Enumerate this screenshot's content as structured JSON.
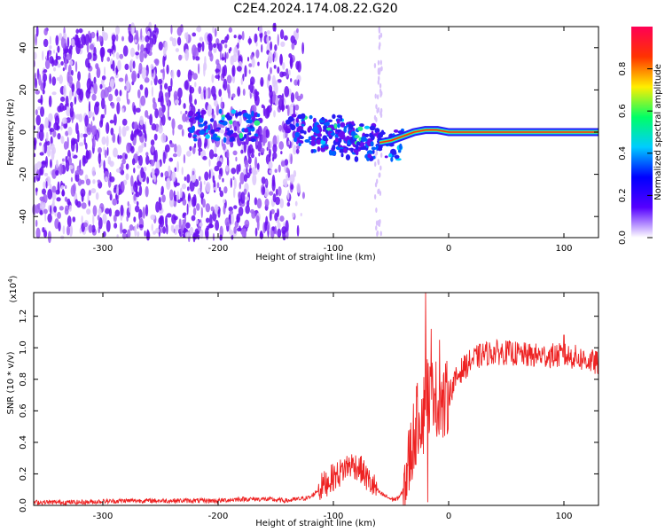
{
  "title": "C2E4.2024.174.08.22.G20",
  "chart_data": [
    {
      "type": "heatmap",
      "xlabel": "Height of straight line (km)",
      "ylabel": "Frequency (Hz)",
      "xlim": [
        -360,
        130
      ],
      "ylim": [
        -50,
        50
      ],
      "x_ticks": [
        -300,
        -200,
        -100,
        0,
        100
      ],
      "y_ticks": [
        -40,
        -20,
        0,
        20,
        40
      ],
      "colorbar": {
        "label": "Normalized spectral amplitude",
        "range": [
          0,
          1
        ],
        "ticks": [
          "0.0",
          "0.2",
          "0.4",
          "0.6",
          "0.8"
        ],
        "colors": [
          "#ffffff",
          "#5500ff",
          "#0000ff",
          "#00ccff",
          "#00ff66",
          "#ffee00",
          "#ff3300",
          "#ff0055"
        ]
      },
      "description_points": {
        "ridge": [
          [
            -60,
            -5
          ],
          [
            -50,
            -4
          ],
          [
            -40,
            -2
          ],
          [
            -30,
            0
          ],
          [
            -20,
            1
          ],
          [
            -10,
            1
          ],
          [
            0,
            0
          ],
          [
            50,
            0
          ],
          [
            130,
            0
          ]
        ],
        "blob_center": [
          [
            -195,
            3
          ],
          [
            -110,
            1
          ],
          [
            -90,
            -3
          ],
          [
            -70,
            -6
          ]
        ]
      }
    },
    {
      "type": "line",
      "xlabel": "Height of straight line (km)",
      "ylabel": "SNR (10 * v/v)",
      "scale_note": "(x10",
      "scale_exp": "4",
      "xlim": [
        -360,
        130
      ],
      "ylim": [
        0,
        1.35
      ],
      "x_ticks": [
        -300,
        -200,
        -100,
        0,
        100
      ],
      "y_ticks": [
        0.0,
        0.2,
        0.4,
        0.6,
        0.8,
        1.0,
        1.2
      ],
      "series": [
        {
          "color": "#ee2222",
          "x": [
            -360,
            -320,
            -280,
            -240,
            -200,
            -180,
            -160,
            -140,
            -120,
            -110,
            -100,
            -95,
            -90,
            -85,
            -80,
            -75,
            -70,
            -65,
            -60,
            -55,
            -50,
            -45,
            -40,
            -35,
            -30,
            -25,
            -22,
            -20,
            -18,
            -15,
            -12,
            -10,
            -8,
            -5,
            0,
            5,
            10,
            20,
            30,
            40,
            50,
            60,
            70,
            80,
            90,
            100,
            110,
            120,
            130
          ],
          "y": [
            0.02,
            0.02,
            0.03,
            0.03,
            0.03,
            0.04,
            0.04,
            0.03,
            0.05,
            0.12,
            0.18,
            0.2,
            0.24,
            0.26,
            0.25,
            0.22,
            0.16,
            0.12,
            0.08,
            0.06,
            0.04,
            0.04,
            0.08,
            0.25,
            0.45,
            0.6,
            0.55,
            0.8,
            0.72,
            0.66,
            0.8,
            0.58,
            0.72,
            0.62,
            0.7,
            0.78,
            0.85,
            0.92,
            0.96,
            0.97,
            0.97,
            0.96,
            0.95,
            0.95,
            0.95,
            0.95,
            0.94,
            0.92,
            0.9
          ]
        }
      ],
      "spikes": [
        [
          -25,
          0.42
        ],
        [
          -20,
          1.35
        ],
        [
          -18,
          0.02
        ],
        [
          -15,
          1.12
        ],
        [
          -8,
          1.05
        ],
        [
          100,
          1.08
        ]
      ]
    }
  ]
}
